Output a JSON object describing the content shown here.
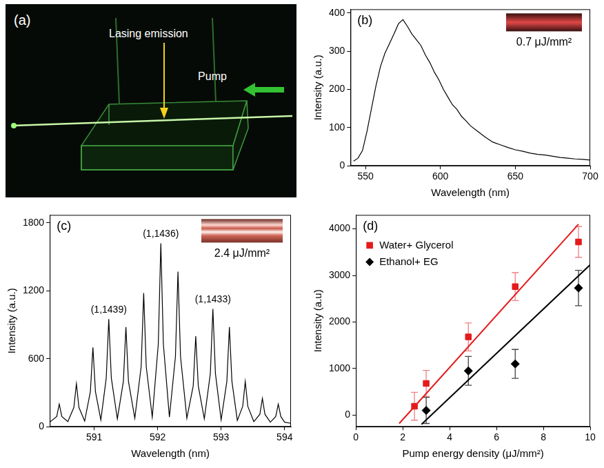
{
  "photo": {
    "panel": "(a)",
    "annotations": [
      "Lasing emission",
      "Pump"
    ]
  },
  "chart_data": [
    {
      "panel": "(b)",
      "type": "line",
      "color": "#000000",
      "xlabel": "Wavelength (nm)",
      "ylabel": "Intensity (a.u.)",
      "x": [
        542,
        545,
        548,
        551,
        554,
        557,
        560,
        563,
        566,
        569,
        572,
        575,
        578,
        581,
        584,
        587,
        590,
        593,
        596,
        599,
        602,
        605,
        608,
        611,
        614,
        617,
        620,
        625,
        630,
        635,
        640,
        645,
        650,
        655,
        660,
        665,
        670,
        675,
        680,
        685,
        690,
        695,
        700
      ],
      "values": [
        12,
        20,
        40,
        90,
        150,
        210,
        260,
        295,
        320,
        345,
        372,
        383,
        365,
        345,
        330,
        315,
        290,
        270,
        245,
        225,
        200,
        180,
        160,
        148,
        130,
        118,
        105,
        90,
        75,
        62,
        55,
        48,
        42,
        38,
        33,
        30,
        28,
        25,
        22,
        20,
        18,
        17,
        15
      ],
      "xlim": [
        540,
        700
      ],
      "xticks": [
        550,
        600,
        650,
        700
      ],
      "ylim": [
        0,
        410
      ],
      "yticks": [
        0,
        100,
        200,
        300,
        400
      ],
      "grid": false,
      "inset_label": "0.7 μJ/mm²"
    },
    {
      "panel": "(c)",
      "type": "line",
      "color": "#000000",
      "xlabel": "Wavelength (nm)",
      "ylabel": "Intensity (a.u.)",
      "x": [
        590.3,
        590.41,
        590.45,
        590.49,
        590.585,
        590.68,
        590.72,
        590.76,
        590.85,
        590.94,
        590.98,
        591.02,
        591.105,
        591.19,
        591.23,
        591.27,
        591.365,
        591.46,
        591.5,
        591.54,
        591.64,
        591.74,
        591.78,
        591.82,
        591.915,
        592.01,
        592.05,
        592.09,
        592.185,
        592.28,
        592.32,
        592.36,
        592.46,
        592.56,
        592.6,
        592.64,
        592.735,
        592.83,
        592.87,
        592.91,
        593.0,
        593.09,
        593.13,
        593.17,
        593.255,
        593.34,
        593.38,
        593.42,
        593.515,
        593.61,
        593.65,
        593.69,
        593.775,
        593.86,
        593.9,
        593.94,
        594.0,
        594.1
      ],
      "values": [
        40,
        90,
        200,
        90,
        45,
        170,
        380,
        170,
        50,
        310,
        700,
        310,
        60,
        430,
        950,
        430,
        70,
        400,
        880,
        400,
        75,
        530,
        1180,
        530,
        85,
        730,
        1620,
        730,
        85,
        620,
        1370,
        620,
        75,
        360,
        800,
        360,
        70,
        470,
        1040,
        470,
        60,
        400,
        880,
        400,
        55,
        180,
        400,
        180,
        45,
        110,
        250,
        110,
        40,
        90,
        200,
        90,
        40,
        30
      ],
      "xlim": [
        590.3,
        594.1
      ],
      "xticks": [
        591,
        592,
        593,
        594
      ],
      "ylim": [
        0,
        1870
      ],
      "yticks": [
        0,
        600,
        1200,
        1800
      ],
      "grid": false,
      "annotations": [
        {
          "text": "(1,1439)",
          "x": 591.23,
          "y": 950
        },
        {
          "text": "(1,1436)",
          "x": 592.05,
          "y": 1620
        },
        {
          "text": "(1,1433)",
          "x": 592.87,
          "y": 1040
        }
      ],
      "inset_label": "2.4 μJ/mm²"
    },
    {
      "panel": "(d)",
      "type": "scatter",
      "xlabel": "Pump energy density (μJ/mm²)",
      "ylabel": "Intensity (a.u)",
      "series": [
        {
          "name": "Water+ Glycerol",
          "color": "#e41a1c",
          "marker": "square",
          "x": [
            2.5,
            3,
            4.8,
            6.8,
            9.5
          ],
          "values": [
            190,
            680,
            1680,
            2760,
            3720
          ],
          "errors": [
            300,
            280,
            300,
            300,
            330
          ],
          "fit": {
            "x": [
              1.85,
              9.5
            ],
            "values": [
              -180,
              4100
            ]
          }
        },
        {
          "name": "Ethanol+ EG",
          "color": "#000000",
          "marker": "diamond",
          "x": [
            3,
            4.8,
            6.8,
            9.5
          ],
          "values": [
            100,
            950,
            1100,
            2730
          ],
          "errors": [
            280,
            310,
            310,
            380
          ],
          "fit": {
            "x": [
              2.8,
              10
            ],
            "values": [
              -200,
              3230
            ]
          }
        }
      ],
      "xlim": [
        0,
        10
      ],
      "xticks": [
        0,
        2,
        4,
        6,
        8,
        10
      ],
      "ylim": [
        -250,
        4300
      ],
      "yticks": [
        0,
        1000,
        2000,
        3000,
        4000
      ],
      "grid": false,
      "legend": "upper left"
    }
  ]
}
